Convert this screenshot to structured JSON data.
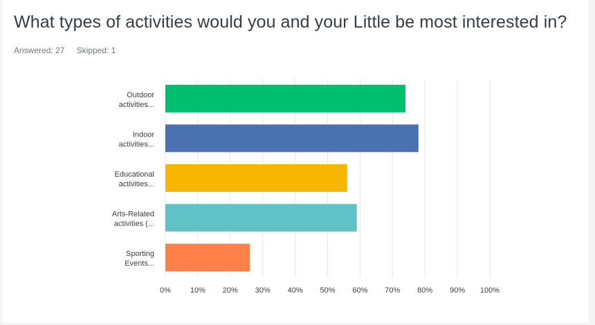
{
  "question": {
    "title": "What types of activities would you and your Little be most interested in?",
    "answered": "Answered: 27",
    "skipped": "Skipped: 1"
  },
  "chart_data": {
    "type": "bar",
    "orientation": "horizontal",
    "categories": [
      [
        "Outdoor",
        "activities..."
      ],
      [
        "Indoor",
        "activities..."
      ],
      [
        "Educational",
        "activities..."
      ],
      [
        "Arts-Related",
        "activities (..."
      ],
      [
        "Sporting",
        "Events..."
      ]
    ],
    "values": [
      74,
      78,
      56,
      59,
      26
    ],
    "colors": [
      "#00bf6f",
      "#4a71b0",
      "#f9b600",
      "#5fc2c7",
      "#ff8049"
    ],
    "xlim": [
      0,
      100
    ],
    "xticks": [
      "0%",
      "10%",
      "20%",
      "30%",
      "40%",
      "50%",
      "60%",
      "70%",
      "80%",
      "90%",
      "100%"
    ],
    "grid": true,
    "legend": "none"
  }
}
